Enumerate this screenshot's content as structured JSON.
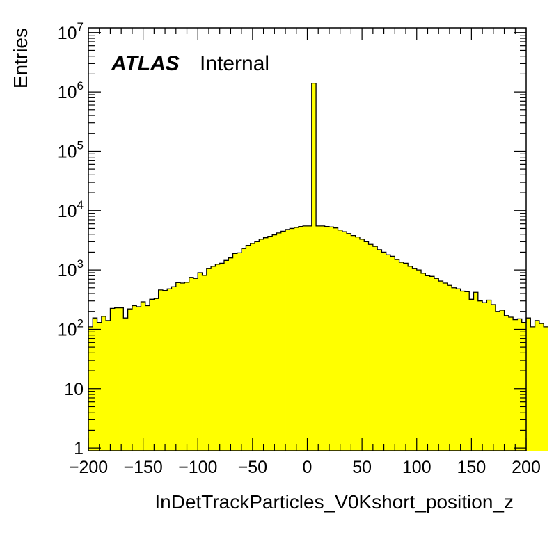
{
  "chart_data": {
    "type": "bar",
    "histogram": true,
    "xlabel": "InDetTrackParticles_V0Kshort_position_z",
    "ylabel": "Entries",
    "xlim": [
      -200,
      200
    ],
    "ylim": [
      0.9,
      12000000
    ],
    "yscale": "log",
    "x_ticks": [
      -200,
      -150,
      -100,
      -50,
      0,
      50,
      100,
      150,
      200
    ],
    "x_tick_labels": [
      "−200",
      "−150",
      "−100",
      "−50",
      "0",
      "50",
      "100",
      "150",
      "200"
    ],
    "y_ticks": [
      {
        "value": 1,
        "base": "1",
        "exp": ""
      },
      {
        "value": 10,
        "base": "10",
        "exp": ""
      },
      {
        "value": 100,
        "base": "10",
        "exp": "2"
      },
      {
        "value": 1000,
        "base": "10",
        "exp": "3"
      },
      {
        "value": 10000,
        "base": "10",
        "exp": "4"
      },
      {
        "value": 100000,
        "base": "10",
        "exp": "5"
      },
      {
        "value": 1000000,
        "base": "10",
        "exp": "6"
      },
      {
        "value": 10000000,
        "base": "10",
        "exp": "7"
      }
    ],
    "grid": false,
    "fill_color": "#ffff00",
    "line_color": "#000000",
    "annotations": {
      "experiment": "ATLAS",
      "status": "Internal"
    },
    "bin_width": 4,
    "bin_edges_start": -200,
    "values": [
      110,
      155,
      130,
      165,
      140,
      225,
      230,
      230,
      155,
      220,
      250,
      240,
      290,
      250,
      320,
      330,
      460,
      450,
      480,
      520,
      610,
      600,
      620,
      750,
      720,
      900,
      810,
      1050,
      1150,
      1250,
      1300,
      1450,
      1600,
      1900,
      1950,
      2300,
      2600,
      2800,
      3000,
      3300,
      3500,
      3700,
      3900,
      4200,
      4500,
      4800,
      5000,
      5200,
      5400,
      5500,
      5500,
      1400000,
      5500,
      5500,
      5400,
      5300,
      5100,
      4700,
      4400,
      4100,
      3800,
      3600,
      3300,
      3000,
      2700,
      2500,
      2200,
      2000,
      1800,
      1700,
      1500,
      1350,
      1300,
      1150,
      1050,
      1000,
      880,
      800,
      780,
      720,
      650,
      600,
      550,
      500,
      480,
      440,
      430,
      320,
      420,
      300,
      280,
      310,
      260,
      200,
      210,
      170,
      160,
      145,
      150,
      130,
      155,
      110,
      140,
      125,
      110
    ]
  }
}
